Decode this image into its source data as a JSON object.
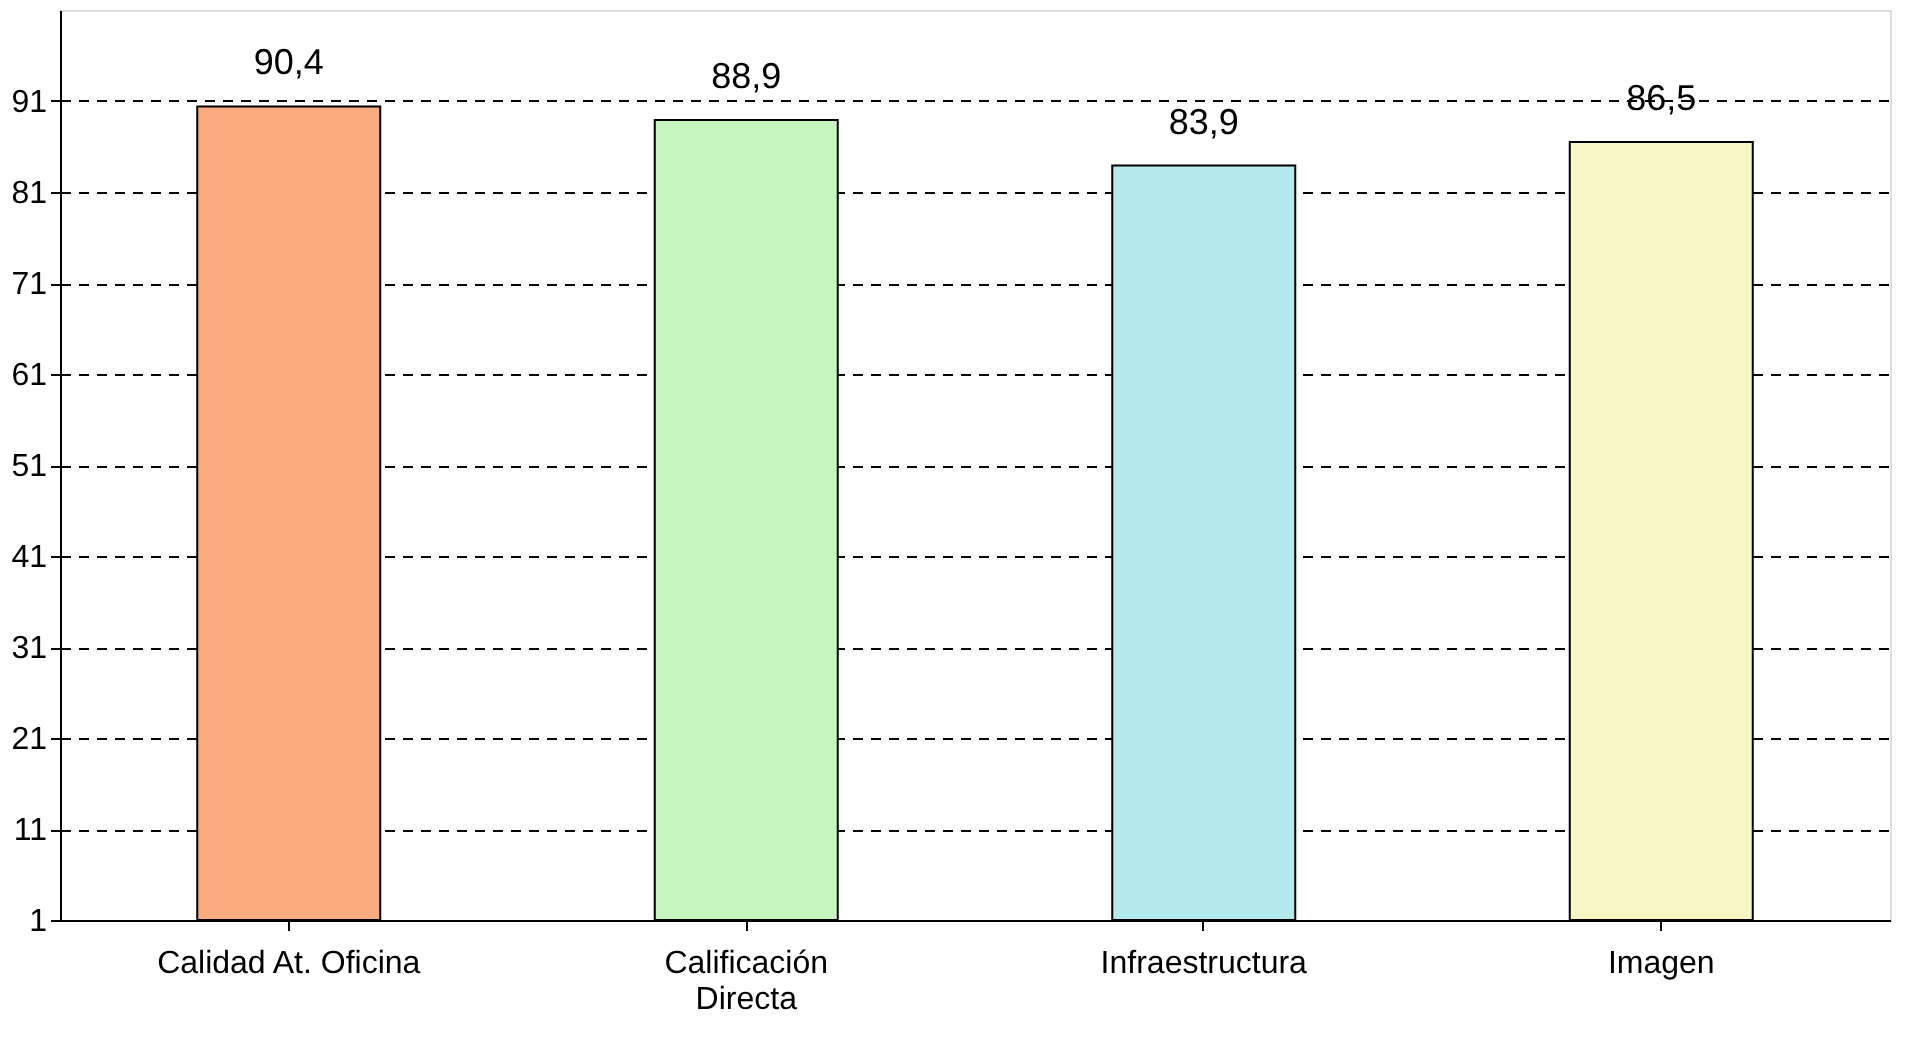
{
  "chart_data": {
    "type": "bar",
    "categories": [
      "Calidad At. Oficina",
      "Calificación Directa",
      "Infraestructura",
      "Imagen"
    ],
    "values": [
      90.4,
      88.9,
      83.9,
      86.5
    ],
    "colors": [
      "#fbab80",
      "#c6f5c0",
      "#b4eaee",
      "#f8f6c4"
    ],
    "value_labels": [
      "90,4",
      "88,9",
      "83,9",
      "86,5"
    ],
    "ylim": [
      1,
      101
    ],
    "yticks": [
      1,
      11,
      21,
      31,
      41,
      51,
      61,
      71,
      81,
      91
    ],
    "grid": "y"
  }
}
